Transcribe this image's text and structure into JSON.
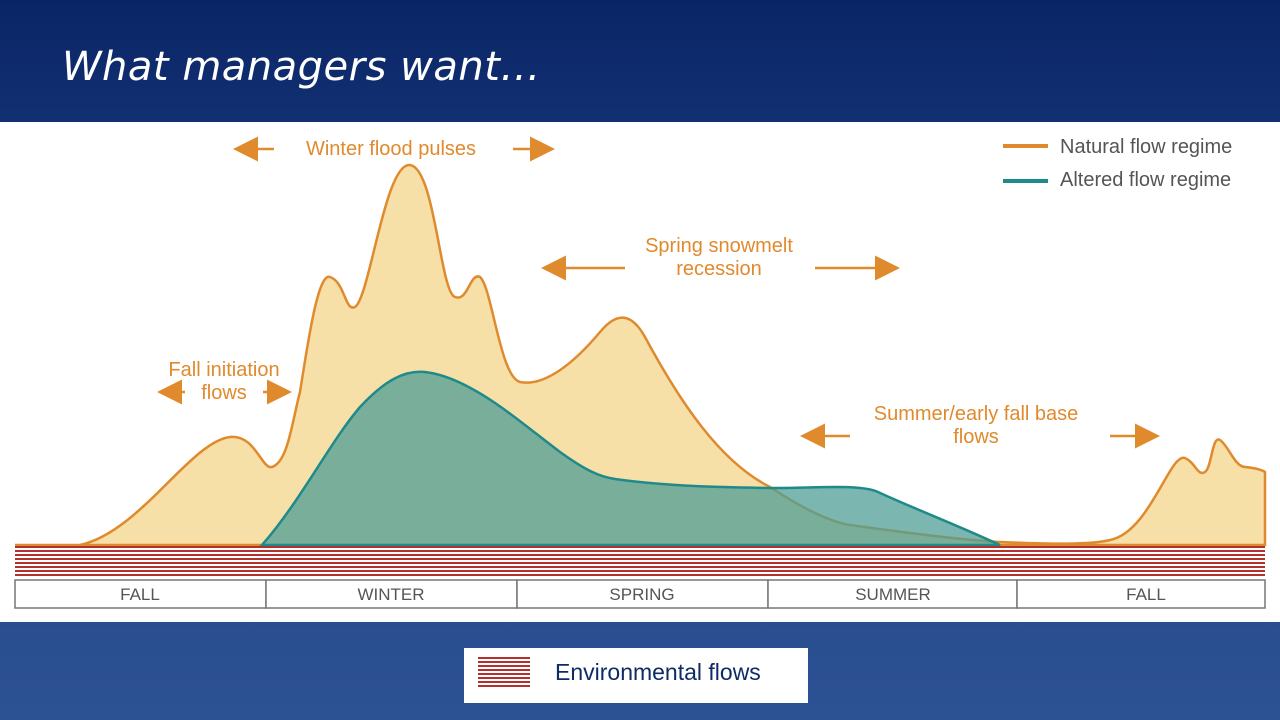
{
  "header": {
    "title": "What managers want…"
  },
  "diagram": {
    "annotations": {
      "winter": "Winter flood pulses",
      "spring": [
        "Spring snowmelt",
        "recession"
      ],
      "fall": [
        "Fall initiation",
        "flows"
      ],
      "summer": [
        "Summer/early fall base",
        "flows"
      ]
    },
    "legend": [
      "Natural flow regime",
      "Altered flow regime"
    ],
    "seasons": [
      "FALL",
      "WINTER",
      "SPRING",
      "SUMMER",
      "FALL"
    ]
  },
  "key": {
    "label": "Environmental flows"
  }
}
